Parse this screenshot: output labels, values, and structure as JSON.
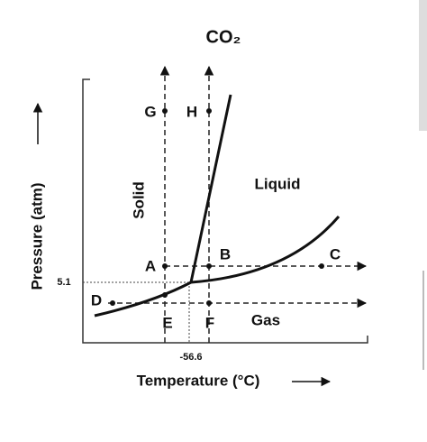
{
  "title": "CO₂",
  "axes": {
    "x_label": "Temperature (°C)",
    "y_label": "Pressure (atm)",
    "x_tick": "-56.6",
    "y_tick": "5.1"
  },
  "regions": [
    "Solid",
    "Liquid",
    "Gas"
  ],
  "points": [
    "G",
    "H",
    "A",
    "B",
    "C",
    "D",
    "E",
    "F"
  ]
}
